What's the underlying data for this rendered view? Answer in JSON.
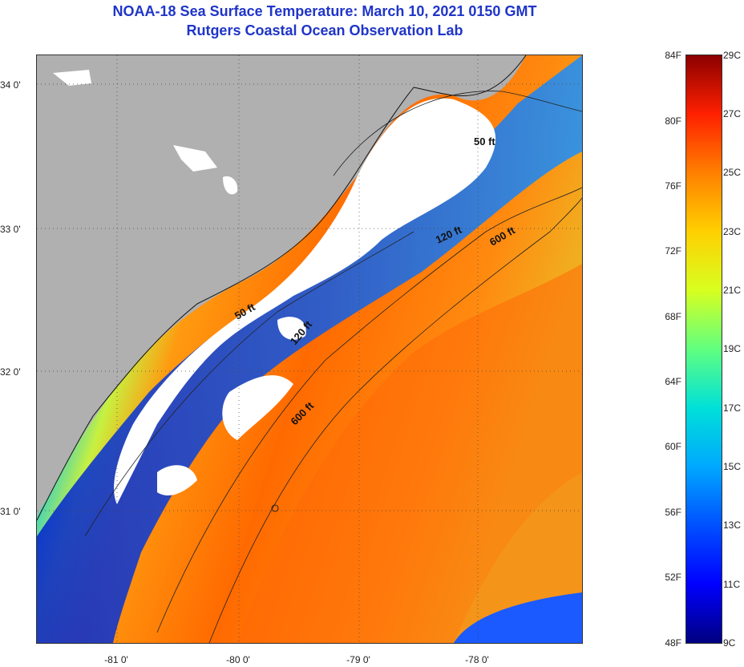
{
  "header": {
    "title": "NOAA-18 Sea Surface Temperature:  March 10, 2021 0150 GMT",
    "subtitle": "Rutgers Coastal Ocean Observation Lab"
  },
  "map": {
    "lat_labels": [
      "34 0'",
      "33 0'",
      "32 0'",
      "31 0'"
    ],
    "lon_labels": [
      "-81 0'",
      "-80 0'",
      "-79 0'",
      "-78 0'"
    ],
    "isobaths": {
      "inner": "50 ft",
      "inner_south": "50 ft",
      "mid": "120 ft",
      "mid_south": "120 ft",
      "outer": "600 ft",
      "outer_south": "600 ft"
    },
    "colors": {
      "land": "#b0b0b0",
      "cloud": "#ffffff",
      "warm": "#ff7a10",
      "cool": "#0030e0"
    }
  },
  "colorbar": {
    "fahrenheit": [
      "84F",
      "80F",
      "76F",
      "72F",
      "68F",
      "64F",
      "60F",
      "56F",
      "52F",
      "48F"
    ],
    "celsius": [
      "29C",
      "27C",
      "25C",
      "23C",
      "21C",
      "19C",
      "17C",
      "15C",
      "13C",
      "11C",
      "9C"
    ]
  }
}
